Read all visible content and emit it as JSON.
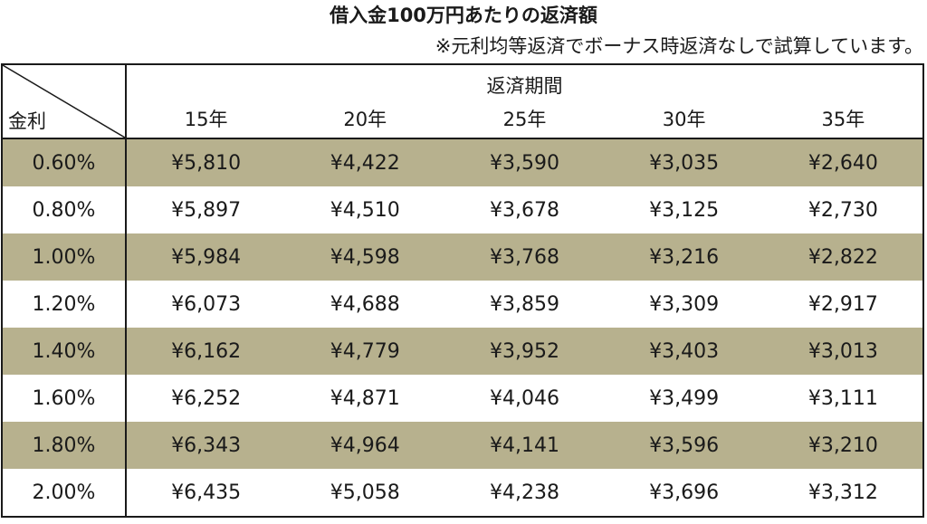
{
  "title": "借入金100万円あたりの返済額",
  "note": "※元利均等返済でボーナス時返済なしで試算しています。",
  "table": {
    "corner_label": "金利",
    "period_header": "返済期間",
    "years": [
      "15年",
      "20年",
      "25年",
      "30年",
      "35年"
    ],
    "rows": [
      {
        "rate": "0.60%",
        "values": [
          "¥5,810",
          "¥4,422",
          "¥3,590",
          "¥3,035",
          "¥2,640"
        ],
        "shaded": true
      },
      {
        "rate": "0.80%",
        "values": [
          "¥5,897",
          "¥4,510",
          "¥3,678",
          "¥3,125",
          "¥2,730"
        ],
        "shaded": false
      },
      {
        "rate": "1.00%",
        "values": [
          "¥5,984",
          "¥4,598",
          "¥3,768",
          "¥3,216",
          "¥2,822"
        ],
        "shaded": true
      },
      {
        "rate": "1.20%",
        "values": [
          "¥6,073",
          "¥4,688",
          "¥3,859",
          "¥3,309",
          "¥2,917"
        ],
        "shaded": false
      },
      {
        "rate": "1.40%",
        "values": [
          "¥6,162",
          "¥4,779",
          "¥3,952",
          "¥3,403",
          "¥3,013"
        ],
        "shaded": true
      },
      {
        "rate": "1.60%",
        "values": [
          "¥6,252",
          "¥4,871",
          "¥4,046",
          "¥3,499",
          "¥3,111"
        ],
        "shaded": false
      },
      {
        "rate": "1.80%",
        "values": [
          "¥6,343",
          "¥4,964",
          "¥4,141",
          "¥3,596",
          "¥3,210"
        ],
        "shaded": true
      },
      {
        "rate": "2.00%",
        "values": [
          "¥6,435",
          "¥5,058",
          "¥4,238",
          "¥3,696",
          "¥3,312"
        ],
        "shaded": false
      }
    ]
  },
  "colors": {
    "shade": "#b7b18e",
    "border": "#1a1a1a"
  }
}
